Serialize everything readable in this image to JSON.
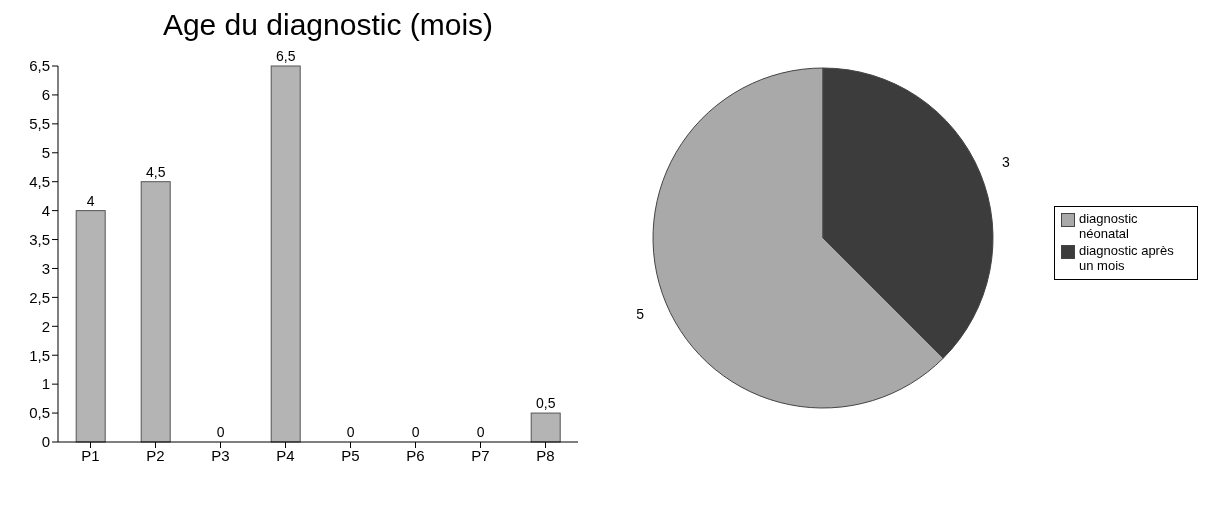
{
  "chart_data": [
    {
      "type": "bar",
      "title": "Age du diagnostic (mois)",
      "categories": [
        "P1",
        "P2",
        "P3",
        "P4",
        "P5",
        "P6",
        "P7",
        "P8"
      ],
      "values": [
        4,
        4.5,
        0,
        6.5,
        0,
        0,
        0,
        0.5
      ],
      "color": "#b4b4b4",
      "value_labels": [
        "4",
        "4,5",
        "0",
        "6,5",
        "0",
        "0",
        "0",
        "0,5"
      ],
      "ylim": [
        0,
        6.5
      ],
      "yticks": [
        0,
        {
          "value": 0.5,
          "label": "0,5"
        },
        1,
        {
          "value": 1.5,
          "label": "1,5"
        },
        2,
        {
          "value": 2.5,
          "label": "2,5"
        },
        3,
        {
          "value": 3.5,
          "label": "3,5"
        },
        4,
        {
          "value": 4.5,
          "label": "4,5"
        },
        5,
        {
          "value": 5.5,
          "label": "5,5"
        },
        6,
        {
          "value": 6.5,
          "label": "6,5"
        }
      ],
      "grid": false,
      "legend": false
    },
    {
      "type": "pie",
      "categories": [
        "diagnostic néonatal",
        "diagnostic après un mois"
      ],
      "values": [
        5,
        3
      ],
      "colors": [
        "#a9a9a9",
        "#3c3c3c"
      ],
      "data_labels": true,
      "legend": "right"
    }
  ]
}
